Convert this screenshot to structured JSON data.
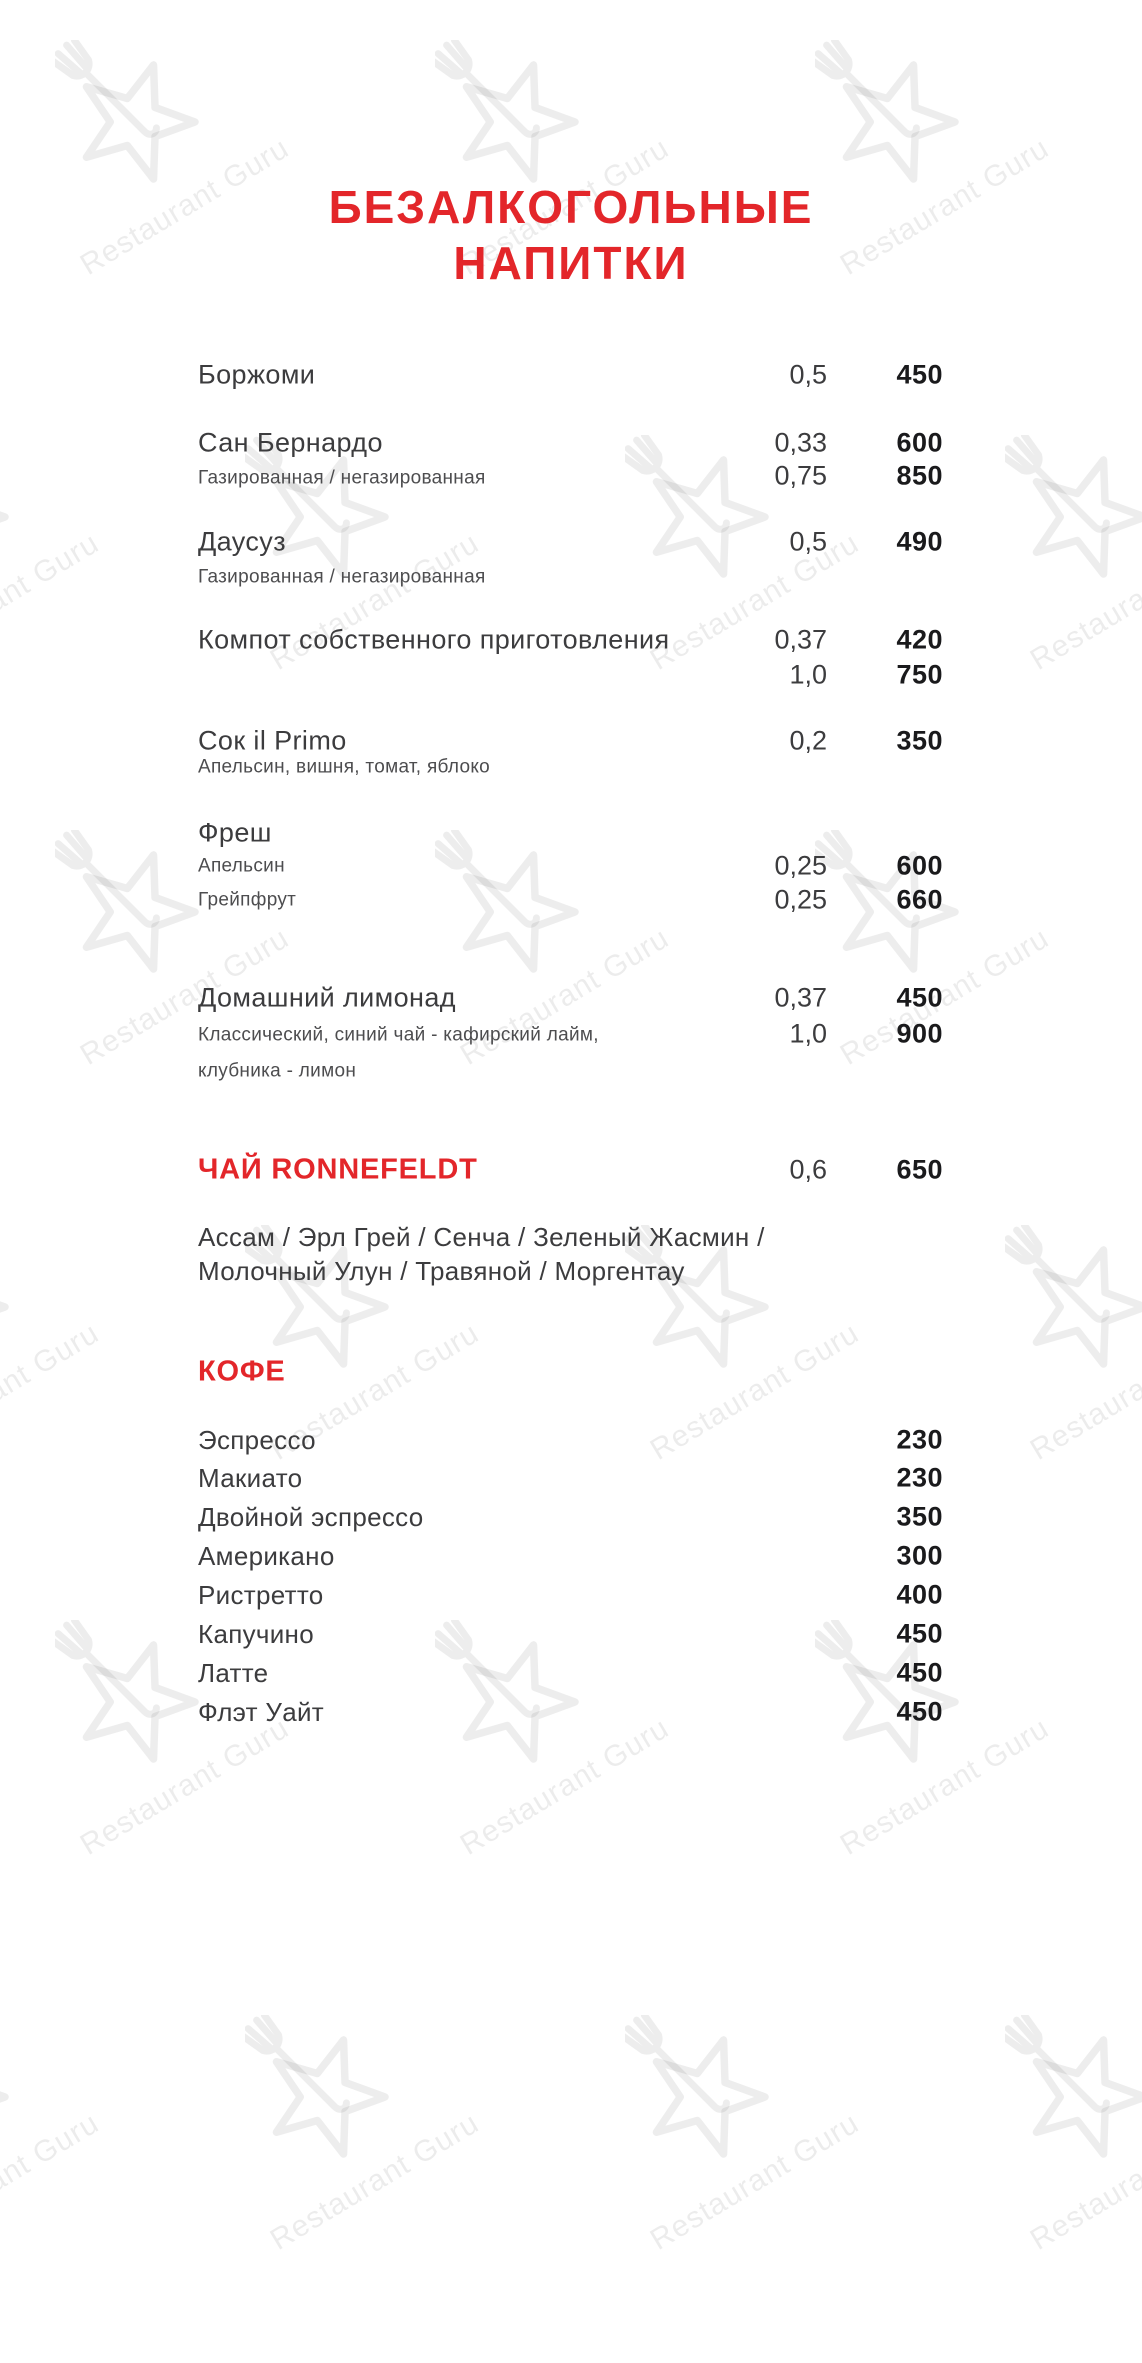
{
  "page": {
    "title_line1": "БЕЗАЛКОГОЛЬНЫЕ",
    "title_line2": "НАПИТКИ",
    "watermark_text": "Restaurant Guru",
    "colors": {
      "accent_red": "#e3262a",
      "item_text": "#3c3c3e",
      "price_black": "#1a1a1c",
      "description_gray": "#4d4d4f"
    }
  },
  "menu": {
    "items": [
      {
        "name": "Боржоми",
        "desc_lines": [],
        "lines": [
          {
            "vol": "0,5",
            "price": "450"
          }
        ]
      },
      {
        "name": "Сан Бернардо",
        "desc_lines": [
          "Газированная / негазированная"
        ],
        "lines": [
          {
            "vol": "0,33",
            "price": "600"
          },
          {
            "vol": "0,75",
            "price": "850"
          }
        ]
      },
      {
        "name": "Даусуз",
        "desc_lines": [
          "Газированная / негазированная"
        ],
        "lines": [
          {
            "vol": "0,5",
            "price": "490"
          }
        ]
      },
      {
        "name": "Компот собственного приготовления",
        "desc_lines": [],
        "lines": [
          {
            "vol": "0,37",
            "price": "420"
          },
          {
            "vol": "1,0",
            "price": "750"
          }
        ]
      },
      {
        "name": "Сок il Primo",
        "desc_lines": [
          "Апельсин, вишня, томат, яблоко"
        ],
        "lines": [
          {
            "vol": "0,2",
            "price": "350"
          }
        ]
      },
      {
        "name": "Фреш",
        "desc_lines": [
          "Апельсин",
          "Грейпфрут"
        ],
        "lines": [
          {
            "vol": "0,25",
            "price": "600"
          },
          {
            "vol": "0,25",
            "price": "660"
          }
        ]
      },
      {
        "name": "Домашний лимонад",
        "desc_lines": [
          "Классический, синий чай - кафирский лайм,",
          "клубника - лимон"
        ],
        "lines": [
          {
            "vol": "0,37",
            "price": "450"
          },
          {
            "vol": "1,0",
            "price": "900"
          }
        ]
      }
    ],
    "tea": {
      "header": "ЧАЙ RONNEFELDT",
      "vol": "0,6",
      "price": "650",
      "varieties_lines": [
        "Ассам / Эрл Грей / Сенча / Зеленый Жасмин /",
        "Молочный Улун / Травяной / Моргентау"
      ]
    },
    "coffee": {
      "header": "КОФЕ",
      "items": [
        {
          "name": "Эспрессо",
          "price": "230"
        },
        {
          "name": "Макиато",
          "price": "230"
        },
        {
          "name": "Двойной эспрессо",
          "price": "350"
        },
        {
          "name": "Американо",
          "price": "300"
        },
        {
          "name": "Ристретто",
          "price": "400"
        },
        {
          "name": "Капучино",
          "price": "450"
        },
        {
          "name": "Латте",
          "price": "450"
        },
        {
          "name": "Флэт Уайт",
          "price": "450"
        }
      ]
    }
  }
}
